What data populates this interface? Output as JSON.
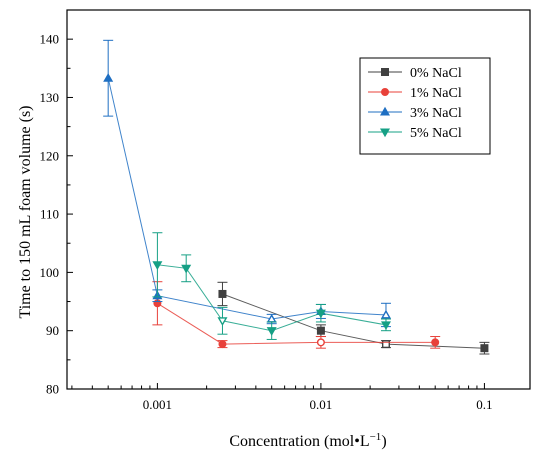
{
  "chart_data": {
    "type": "scatter",
    "xlabel": "Concentration (mol•L",
    "xlabel_sup": "−1",
    "xlabel_suffix": ")",
    "ylabel": "Time to 150 mL foam volume (s)",
    "x_scale": "log",
    "xlim": [
      0.00028,
      0.19
    ],
    "ylim": [
      80,
      145
    ],
    "x_ticks": [
      0.001,
      0.01,
      0.1
    ],
    "x_tick_labels": [
      "0.001",
      "0.01",
      "0.1"
    ],
    "y_ticks": [
      80,
      90,
      100,
      110,
      120,
      130,
      140
    ],
    "y_tick_labels": [
      "80",
      "90",
      "100",
      "110",
      "120",
      "130",
      "140"
    ],
    "grid": false,
    "legend_position": "top-right",
    "series": [
      {
        "name": "0% NaCl",
        "color": "#404040",
        "marker": "square",
        "points": [
          {
            "x": 0.0025,
            "y": 96.3,
            "err": 2.0,
            "filled": true
          },
          {
            "x": 0.01,
            "y": 90.0,
            "err": 1.0,
            "filled": true
          },
          {
            "x": 0.025,
            "y": 87.7,
            "err": 0.6,
            "filled": false
          },
          {
            "x": 0.1,
            "y": 87.0,
            "err": 1.0,
            "filled": true
          }
        ]
      },
      {
        "name": "1% NaCl",
        "color": "#e8413a",
        "marker": "circle",
        "points": [
          {
            "x": 0.001,
            "y": 94.7,
            "err": 3.7,
            "filled": true
          },
          {
            "x": 0.0025,
            "y": 87.7,
            "err": 0.6,
            "filled": true
          },
          {
            "x": 0.01,
            "y": 88.0,
            "err": 1.0,
            "filled": false
          },
          {
            "x": 0.05,
            "y": 88.0,
            "err": 1.0,
            "filled": true
          }
        ]
      },
      {
        "name": "3% NaCl",
        "color": "#1f6fc2",
        "marker": "triangle-up",
        "points": [
          {
            "x": 0.0005,
            "y": 133.3,
            "err": 6.5,
            "filled": true
          },
          {
            "x": 0.001,
            "y": 96.0,
            "err": 1.0,
            "filled": true
          },
          {
            "x": 0.005,
            "y": 92.0,
            "err": 0.8,
            "filled": false
          },
          {
            "x": 0.01,
            "y": 93.3,
            "err": 1.2,
            "filled": false
          },
          {
            "x": 0.025,
            "y": 92.7,
            "err": 2.0,
            "filled": false
          }
        ]
      },
      {
        "name": "5% NaCl",
        "color": "#16a085",
        "marker": "triangle-down",
        "points": [
          {
            "x": 0.001,
            "y": 101.3,
            "err": 5.5,
            "filled": true
          },
          {
            "x": 0.0015,
            "y": 100.7,
            "err": 2.3,
            "filled": true
          },
          {
            "x": 0.0025,
            "y": 91.7,
            "err": 2.3,
            "filled": false
          },
          {
            "x": 0.005,
            "y": 90.0,
            "err": 1.5,
            "filled": true
          },
          {
            "x": 0.01,
            "y": 93.0,
            "err": 1.5,
            "filled": true
          },
          {
            "x": 0.025,
            "y": 91.0,
            "err": 1.0,
            "filled": true
          }
        ]
      }
    ]
  }
}
